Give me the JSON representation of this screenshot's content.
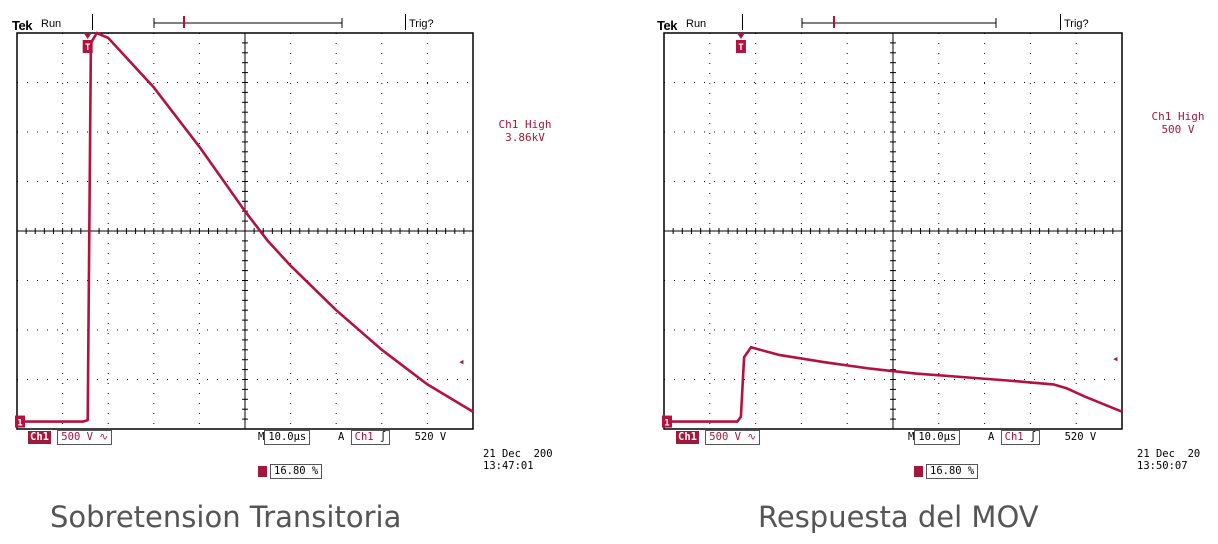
{
  "chart_data": [
    {
      "type": "line",
      "title": "Sobretension Transitoria",
      "header": {
        "brand": "Tek",
        "status": "Run",
        "trigger_status": "Trig?"
      },
      "channel_label": "Ch1 High",
      "channel_value": "3.86kV",
      "ch_tag": "Ch1",
      "volts_div": "500 V",
      "coupling_symbol": "∿",
      "timebase_prefix": "M",
      "timebase": "10.0µs",
      "trigger_prefix": "A",
      "trigger_source": "Ch1",
      "trigger_slope": "∫",
      "trigger_level": "520 V",
      "date": "21 Dec  200",
      "time": "13:47:01",
      "trigger_position": "16.80 %",
      "x_unit": "divisions",
      "y_unit": "divisions",
      "xlim": [
        0,
        10
      ],
      "ylim": [
        0,
        8
      ],
      "series": [
        {
          "x": [
            0,
            1.45,
            1.55,
            1.62,
            1.75,
            2.0,
            3.0,
            4.0,
            5.0,
            5.5,
            6.0,
            7.0,
            8.0,
            9.0,
            10.0
          ],
          "y": [
            0.15,
            0.15,
            0.18,
            7.8,
            8.0,
            7.9,
            6.9,
            5.7,
            4.4,
            3.8,
            3.3,
            2.4,
            1.6,
            0.9,
            0.35
          ]
        }
      ]
    },
    {
      "type": "line",
      "title": "Respuesta del MOV",
      "header": {
        "brand": "Tek",
        "status": "Run",
        "trigger_status": "Trig?"
      },
      "channel_label": "Ch1 High",
      "channel_value": "500 V",
      "ch_tag": "Ch1",
      "volts_div": "500 V",
      "coupling_symbol": "∿",
      "timebase_prefix": "M",
      "timebase": "10.0µs",
      "trigger_prefix": "A",
      "trigger_source": "Ch1",
      "trigger_slope": "∫",
      "trigger_level": "520 V",
      "date": "21 Dec  20",
      "time": "13:50:07",
      "trigger_position": "16.80 %",
      "x_unit": "divisions",
      "y_unit": "divisions",
      "xlim": [
        0,
        10
      ],
      "ylim": [
        0,
        8
      ],
      "series": [
        {
          "x": [
            0,
            1.6,
            1.68,
            1.75,
            1.9,
            2.5,
            3.5,
            4.5,
            5.5,
            6.5,
            7.5,
            8.5,
            8.8,
            9.2,
            10.0
          ],
          "y": [
            0.15,
            0.15,
            0.25,
            1.45,
            1.65,
            1.5,
            1.35,
            1.22,
            1.12,
            1.05,
            0.98,
            0.9,
            0.82,
            0.65,
            0.35
          ]
        }
      ]
    }
  ],
  "colors": {
    "trace": "#b3123f",
    "label": "#a0183c",
    "grid": "#000000"
  },
  "markers": {
    "trigger_marker": "T",
    "ground_marker": "1"
  }
}
